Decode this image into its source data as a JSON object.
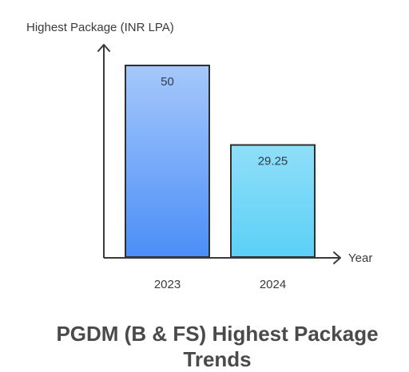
{
  "chart_data": {
    "type": "bar",
    "title": "PGDM (B & FS) Highest Package Trends",
    "title_lines": [
      "PGDM (B & FS) Highest Package",
      "Trends"
    ],
    "ylabel": "Highest Package (INR LPA)",
    "xlabel": "Year",
    "categories": [
      "2023",
      "2024"
    ],
    "values": [
      50,
      29.25
    ],
    "value_labels": [
      "50",
      "29.25"
    ],
    "ylim": [
      0,
      55
    ],
    "grid": false,
    "bar_colors": [
      {
        "top": "#a6c8fb",
        "bottom": "#4a8ef8"
      },
      {
        "top": "#8fdff8",
        "bottom": "#5bd0f7"
      }
    ],
    "stroke_color": "#2f2f2f",
    "axis_color": "#3a3a3a"
  }
}
